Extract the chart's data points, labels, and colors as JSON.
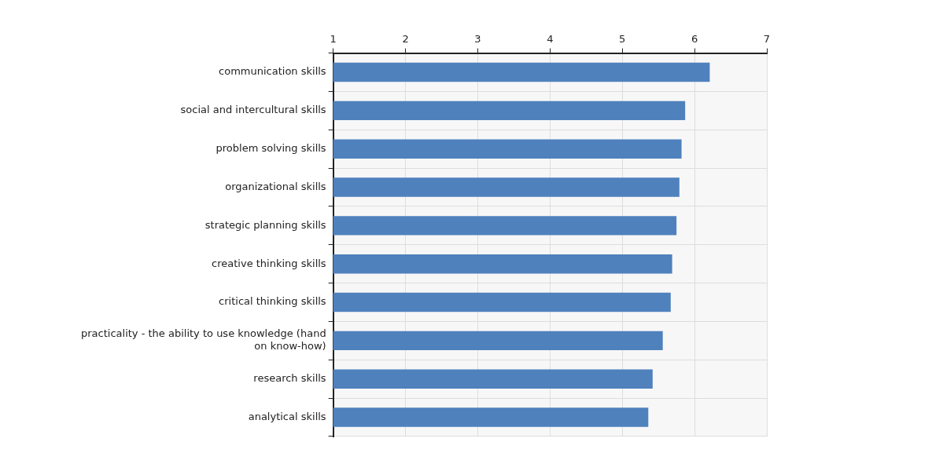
{
  "chart_data": {
    "type": "bar",
    "orientation": "horizontal",
    "categories": [
      "communication skills",
      "social and intercultural skills",
      "problem solving skills",
      "organizational skills",
      "strategic planning skills",
      "creative thinking skills",
      "critical thinking skills",
      "practicality - the ability to use knowledge (hand on know-how)",
      "research skills",
      "analytical skills"
    ],
    "values": [
      6.21,
      5.87,
      5.82,
      5.79,
      5.75,
      5.69,
      5.67,
      5.56,
      5.42,
      5.36
    ],
    "color": "#4f81bd",
    "xlim": [
      1,
      7
    ],
    "xticks": [
      1,
      2,
      3,
      4,
      5,
      6,
      7
    ],
    "grid": true
  }
}
